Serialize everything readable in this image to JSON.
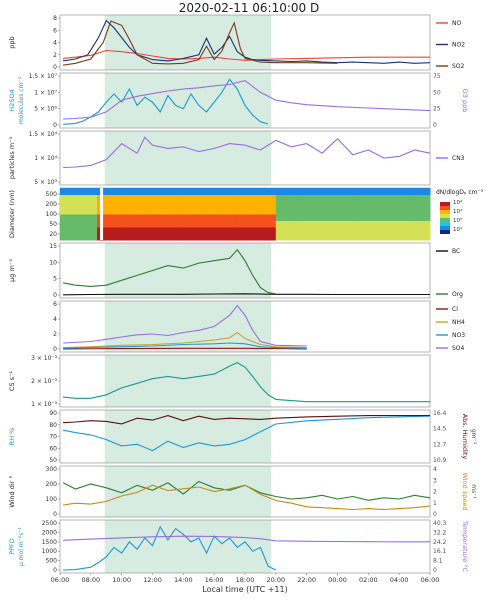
{
  "title": "2020-02-11 06:10:00 D",
  "xlabel": "Local time (UTC +11)",
  "x_ticks": [
    "06:00",
    "08:00",
    "10:00",
    "12:00",
    "14:00",
    "16:00",
    "18:00",
    "20:00",
    "22:00",
    "00:00",
    "02:00",
    "04:00",
    "06:00"
  ],
  "highlight": {
    "from_hour": 8.9,
    "to_hour": 19.7,
    "color": "#d7ece1"
  },
  "chart_data": [
    {
      "type": "line",
      "ylabel": "ppb",
      "ylim": [
        0,
        8
      ],
      "yticks": [
        "0",
        "2",
        "4",
        "6",
        "8"
      ],
      "series": [
        {
          "name": "NO",
          "color": "#e8453c",
          "x": [
            6.2,
            7,
            8,
            9,
            10,
            11,
            12,
            13,
            14,
            15,
            16,
            17,
            18,
            19,
            20,
            22,
            24,
            26,
            28,
            30
          ],
          "y": [
            1.4,
            1.6,
            1.9,
            2.7,
            2.5,
            2.2,
            1.8,
            1.4,
            1.3,
            1.4,
            1.6,
            1.3,
            1.1,
            1.2,
            1.3,
            1.4,
            1.5,
            1.6,
            1.6,
            1.6
          ]
        },
        {
          "name": "NO2",
          "color": "#1f2f7a",
          "x": [
            6.2,
            7,
            7.8,
            8.5,
            9,
            9.5,
            10,
            10.5,
            11,
            12,
            13,
            14,
            15,
            15.5,
            16,
            16.5,
            17,
            17.5,
            18,
            18.5,
            19,
            20,
            21,
            22,
            23,
            24,
            25,
            26,
            27,
            28,
            29,
            30
          ],
          "y": [
            1.0,
            1.3,
            2.0,
            4.8,
            7.6,
            6.4,
            4.8,
            3.2,
            2.0,
            1.2,
            1.0,
            1.4,
            2.0,
            4.7,
            2.1,
            3.2,
            5.0,
            2.5,
            1.6,
            1.2,
            1.1,
            1.0,
            0.9,
            1.0,
            0.8,
            0.7,
            0.8,
            0.7,
            0.6,
            0.8,
            0.6,
            0.7
          ]
        },
        {
          "name": "SO2",
          "color": "#7a3b17",
          "x": [
            6.2,
            7,
            8,
            8.8,
            9.3,
            10,
            10.5,
            11,
            12,
            13,
            14,
            15,
            15.5,
            16,
            16.5,
            17,
            17.3,
            17.7,
            18,
            19,
            20,
            22,
            24
          ],
          "y": [
            0.3,
            0.6,
            1.3,
            4.0,
            7.5,
            6.8,
            4.5,
            2.0,
            0.6,
            0.5,
            0.6,
            1.2,
            3.4,
            1.2,
            2.6,
            5.6,
            7.2,
            3.0,
            1.4,
            0.8,
            0.7,
            0.7,
            0.6
          ]
        }
      ]
    },
    {
      "type": "line",
      "ylabel": "H2SO4",
      "ylabel2": "molecules cm⁻³",
      "ylabel_right": "O3 ppb",
      "ylim": [
        0,
        15000000.0
      ],
      "yticks": [
        "0",
        "5 × 10⁶",
        "1 × 10⁷",
        "1.5 × 10⁷"
      ],
      "ylim_right": [
        0,
        75
      ],
      "yticks_right": [
        "0",
        "25",
        "50",
        "75"
      ],
      "series": [
        {
          "name": "H2SO4",
          "color": "#1d9ad6",
          "x": [
            6.2,
            7,
            7.5,
            8,
            8.5,
            9,
            9.5,
            10,
            10.5,
            11,
            11.5,
            12,
            12.5,
            13,
            13.5,
            14,
            14.5,
            15,
            15.5,
            16,
            16.5,
            17,
            17.5,
            18,
            18.5,
            19,
            19.5
          ],
          "y": [
            200000.0,
            500000.0,
            1200000.0,
            2500000.0,
            4000000.0,
            7000000.0,
            9500000.0,
            7000000.0,
            11000000.0,
            6000000.0,
            8500000.0,
            7000000.0,
            4000000.0,
            9000000.0,
            6000000.0,
            5000000.0,
            9500000.0,
            6000000.0,
            4000000.0,
            7000000.0,
            10000000.0,
            14000000.0,
            11000000.0,
            6000000.0,
            3000000.0,
            1000000.0,
            300000.0
          ]
        },
        {
          "name": "O3",
          "color": "#9b6ee0",
          "x": [
            6.2,
            7,
            8,
            9,
            10,
            11,
            12,
            13,
            14,
            15,
            16,
            17,
            18,
            19,
            20,
            21,
            22,
            24,
            26,
            28,
            30
          ],
          "y": [
            9,
            10,
            12,
            20,
            38,
            44,
            48,
            52,
            55,
            57,
            60,
            62,
            68,
            50,
            38,
            34,
            31,
            28,
            26,
            24,
            22
          ]
        }
      ]
    },
    {
      "type": "line",
      "ylabel": "particles m⁻³",
      "ylim": [
        0,
        15000
      ],
      "yticks": [
        "5 × 10³",
        "1 × 10⁴",
        "1.5 × 10⁴"
      ],
      "series": [
        {
          "name": "CN3",
          "color": "#9b6ee0",
          "x": [
            6.2,
            7,
            8,
            9,
            10,
            11,
            11.5,
            12,
            13,
            14,
            15,
            16,
            17,
            18,
            19,
            20,
            21,
            22,
            23,
            24,
            25,
            26,
            27,
            28,
            29,
            30
          ],
          "y": [
            4500,
            4700,
            5200,
            7000,
            12000,
            9000,
            14000,
            11500,
            10500,
            11000,
            9500,
            10500,
            12000,
            11500,
            10000,
            13000,
            11000,
            12000,
            9000,
            13500,
            8500,
            10000,
            7500,
            8000,
            10000,
            9000
          ]
        }
      ]
    },
    {
      "type": "heatmap",
      "ylabel": "Diameter (nm)",
      "yticks": [
        "20",
        "50",
        "100",
        "200",
        "500"
      ],
      "colorbar_label": "dN/dlogDₚ cm⁻³",
      "colorbar_ticks": [
        "10¹",
        "10²",
        "10³",
        "10⁴"
      ]
    },
    {
      "type": "line",
      "ylabel": "μg m⁻³",
      "ylim": [
        0,
        20
      ],
      "yticks": [
        "0",
        "5",
        "10",
        "15"
      ],
      "series": [
        {
          "name": "BC",
          "color": "#111111",
          "x": [
            6.2,
            8,
            10,
            12,
            14,
            16,
            18,
            20,
            22,
            24,
            26,
            28,
            30
          ],
          "y": [
            0.1,
            0.2,
            0.3,
            0.3,
            0.3,
            0.4,
            0.5,
            0.3,
            0.3,
            0.2,
            0.2,
            0.2,
            0.2
          ]
        },
        {
          "name": "Org",
          "color": "#2e7d32",
          "x": [
            6.2,
            7,
            8,
            9,
            10,
            11,
            12,
            13,
            14,
            15,
            16,
            17,
            17.5,
            18,
            18.5,
            19,
            19.5,
            20
          ],
          "y": [
            5,
            4,
            3.5,
            4,
            6,
            8,
            10,
            12,
            11,
            13,
            14,
            15,
            18.5,
            14,
            8,
            3,
            1,
            0.5
          ]
        }
      ]
    },
    {
      "type": "line",
      "ylim": [
        0,
        6
      ],
      "yticks": [
        "0",
        "2",
        "4",
        "6"
      ],
      "series": [
        {
          "name": "Cl",
          "color": "#8b1a1a",
          "x": [
            6.2,
            10,
            14,
            18,
            20,
            22
          ],
          "y": [
            0,
            0.05,
            0.1,
            0.1,
            0.05,
            0
          ]
        },
        {
          "name": "NH4",
          "color": "#c9a227",
          "x": [
            6.2,
            8,
            10,
            12,
            14,
            16,
            17,
            17.5,
            18,
            19,
            20,
            22
          ],
          "y": [
            0.2,
            0.3,
            0.5,
            0.6,
            0.8,
            1.2,
            1.5,
            2.2,
            1.4,
            0.6,
            0.3,
            0.2
          ]
        },
        {
          "name": "NO3",
          "color": "#1d9ad6",
          "x": [
            6.2,
            8,
            10,
            12,
            14,
            16,
            17,
            18,
            19,
            20,
            22
          ],
          "y": [
            0.1,
            0.2,
            0.3,
            0.4,
            0.6,
            0.7,
            0.8,
            0.7,
            0.3,
            0.2,
            0.1
          ]
        },
        {
          "name": "SO4",
          "color": "#9b6ee0",
          "x": [
            6.2,
            8,
            9,
            10,
            11,
            12,
            13,
            14,
            15,
            16,
            17,
            17.5,
            18,
            18.5,
            19,
            20,
            22
          ],
          "y": [
            0.8,
            1.0,
            1.3,
            1.6,
            1.9,
            2.0,
            1.8,
            2.2,
            2.5,
            3.0,
            4.5,
            5.8,
            4.5,
            2.5,
            1.0,
            0.5,
            0.4
          ]
        }
      ]
    },
    {
      "type": "line",
      "ylabel": "CS s⁻¹",
      "ylim": [
        0,
        0.004
      ],
      "yticks": [
        "1 × 10⁻³",
        "2 × 10⁻³",
        "3 × 10⁻³"
      ],
      "series": [
        {
          "name": "CS",
          "color": "#1a9a8c",
          "x": [
            6.2,
            7,
            8,
            9,
            10,
            11,
            12,
            13,
            14,
            15,
            16,
            17,
            17.5,
            18,
            18.5,
            19,
            19.5,
            20,
            22,
            24,
            26,
            28,
            30
          ],
          "y": [
            0.0006,
            0.0005,
            0.0005,
            0.0008,
            0.0014,
            0.0018,
            0.0022,
            0.0024,
            0.0022,
            0.0024,
            0.0026,
            0.0033,
            0.0036,
            0.0032,
            0.0024,
            0.0015,
            0.0008,
            0.0004,
            0.0002,
            0.0002,
            0.0002,
            0.0002,
            0.0002
          ]
        }
      ]
    },
    {
      "type": "line",
      "ylabel": "RH %",
      "ylabel_right": "Abs. Humidity",
      "ylabel_right2": "gm⁻³",
      "ylim": [
        40,
        100
      ],
      "yticks": [
        "50",
        "60",
        "70",
        "80",
        "90"
      ],
      "ylim_right": [
        9.1,
        16.4
      ],
      "yticks_right": [
        "10.9",
        "12.7",
        "14.5",
        "16.4"
      ],
      "series": [
        {
          "name": "RH",
          "color": "#1d9ad6",
          "x": [
            6.2,
            7,
            8,
            9,
            10,
            11,
            12,
            13,
            14,
            15,
            16,
            17,
            18,
            19,
            20,
            22,
            24,
            26,
            28,
            30
          ],
          "y": [
            78,
            75,
            72,
            66,
            58,
            60,
            52,
            64,
            56,
            62,
            58,
            60,
            66,
            76,
            86,
            90,
            92,
            94,
            95,
            96
          ]
        },
        {
          "name": "Abs. Humidity",
          "color": "#5a0f0f",
          "x": [
            6.2,
            7,
            8,
            9,
            10,
            11,
            12,
            13,
            14,
            15,
            16,
            17,
            18,
            19,
            20,
            22,
            24,
            26,
            28,
            30
          ],
          "y": [
            14.9,
            15.0,
            15.2,
            15.1,
            14.7,
            15.6,
            15.3,
            16.0,
            15.2,
            15.9,
            15.4,
            15.6,
            15.5,
            15.4,
            15.6,
            15.8,
            15.9,
            16.0,
            16.0,
            16.0
          ]
        }
      ]
    },
    {
      "type": "line",
      "ylabel": "Wind dir °",
      "ylabel_right": "Wind speed",
      "ylabel_right2": "ms⁻¹",
      "ylim": [
        0,
        360
      ],
      "yticks": [
        "0",
        "100",
        "200",
        "300"
      ],
      "ylim_right": [
        0,
        5
      ],
      "yticks_right": [
        "0",
        "1",
        "2",
        "3",
        "4"
      ],
      "series": [
        {
          "name": "Wind dir",
          "color": "#2e7d32",
          "x": [
            6.2,
            7,
            8,
            9,
            10,
            11,
            12,
            13,
            14,
            15,
            16,
            17,
            18,
            19,
            20,
            21,
            22,
            23,
            24,
            25,
            26,
            27,
            28,
            29,
            30
          ],
          "y": [
            250,
            200,
            240,
            210,
            170,
            230,
            190,
            250,
            160,
            260,
            210,
            190,
            230,
            170,
            140,
            120,
            130,
            150,
            120,
            140,
            110,
            130,
            120,
            150,
            130
          ]
        },
        {
          "name": "Wind speed",
          "color": "#c68a1a",
          "x": [
            6.2,
            7,
            8,
            9,
            10,
            11,
            12,
            13,
            14,
            15,
            16,
            17,
            18,
            19,
            20,
            21,
            22,
            23,
            24,
            25,
            26,
            27,
            28,
            29,
            30
          ],
          "y": [
            1.0,
            1.2,
            1.1,
            1.4,
            2.0,
            2.4,
            3.2,
            2.6,
            2.8,
            3.0,
            2.5,
            2.8,
            3.2,
            2.2,
            1.5,
            1.2,
            0.8,
            0.7,
            0.6,
            0.5,
            0.6,
            0.5,
            0.6,
            0.7,
            0.9
          ]
        }
      ]
    },
    {
      "type": "line",
      "ylabel": "PPFD",
      "ylabel2": "μ mol m⁻²s⁻¹",
      "ylabel_right": "Temperature °C",
      "ylim": [
        0,
        2500
      ],
      "yticks": [
        "0",
        "500",
        "1000",
        "1500",
        "2000",
        "2500"
      ],
      "ylim_right": [
        0,
        40.3
      ],
      "yticks_right": [
        "0",
        "8.1",
        "16.1",
        "24.2",
        "32.2",
        "40.3"
      ],
      "series": [
        {
          "name": "PPFD",
          "color": "#1d9ad6",
          "x": [
            6.2,
            7,
            8,
            8.5,
            9,
            9.5,
            10,
            10.5,
            11,
            11.5,
            12,
            12.5,
            13,
            13.5,
            14,
            14.5,
            15,
            15.5,
            16,
            16.5,
            17,
            17.5,
            18,
            18.5,
            19,
            19.5,
            20
          ],
          "y": [
            0,
            20,
            150,
            400,
            700,
            1200,
            900,
            1500,
            1100,
            1700,
            1300,
            2300,
            1600,
            2200,
            1900,
            1500,
            1700,
            900,
            1800,
            1400,
            1700,
            1200,
            1500,
            1000,
            1200,
            200,
            0
          ]
        },
        {
          "name": "Temperature",
          "color": "#9b6ee0",
          "x": [
            6.2,
            8,
            10,
            12,
            14,
            16,
            18,
            19,
            20,
            22,
            24,
            26,
            28,
            30
          ],
          "y": [
            25.5,
            26.5,
            27.5,
            28.5,
            29.0,
            28.8,
            27.8,
            26.8,
            25.0,
            24.6,
            24.4,
            24.3,
            24.2,
            24.2
          ]
        }
      ]
    }
  ]
}
